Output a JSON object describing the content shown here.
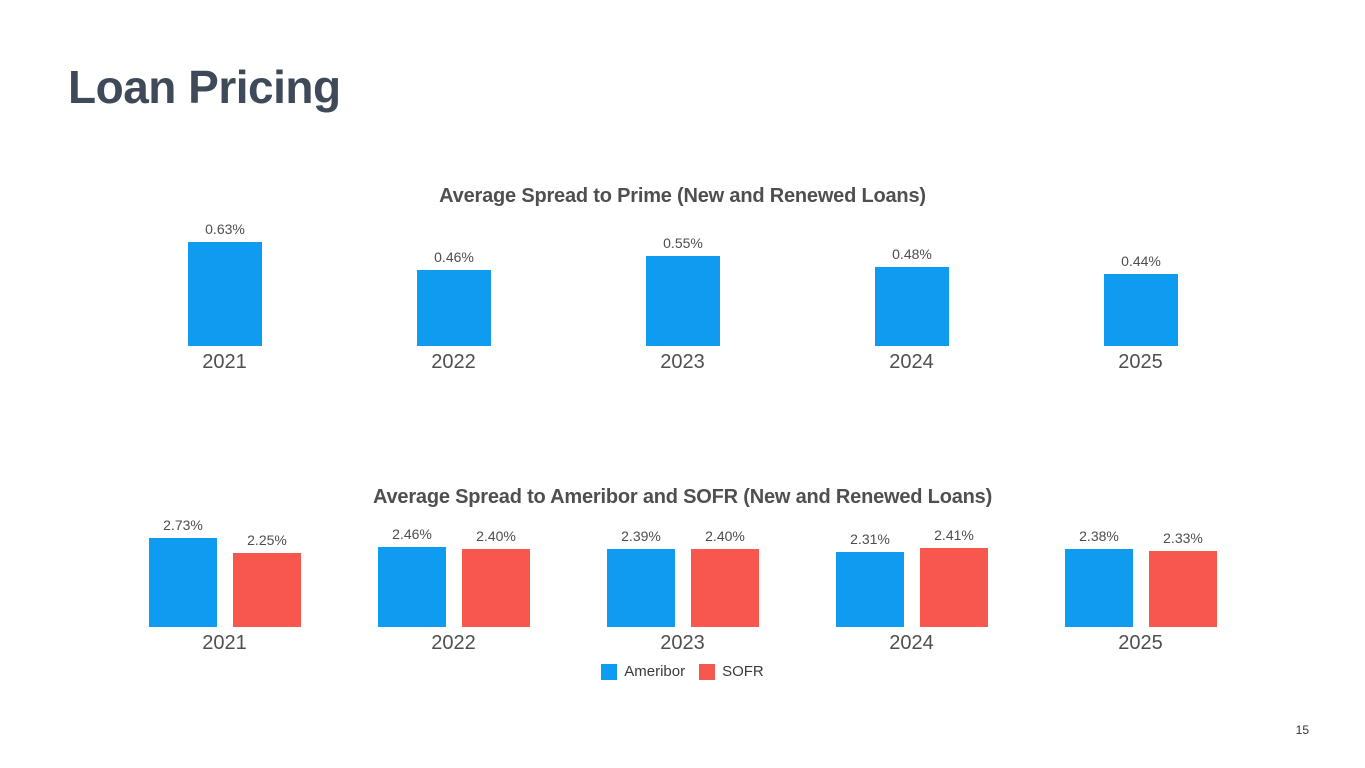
{
  "slide": {
    "title": "Loan Pricing",
    "page_number": "15"
  },
  "colors": {
    "ameribor_blue": "#0F9BF0",
    "sofr_red": "#F8574D",
    "title_dark_slate": "#3E4A59",
    "chart_text_gray": "#4F4F4F"
  },
  "chart_data": [
    {
      "type": "bar",
      "title": "Average Spread to Prime (New and Renewed Loans)",
      "categories": [
        "2021",
        "2022",
        "2023",
        "2024",
        "2025"
      ],
      "series": [
        {
          "name": "Spread to Prime",
          "color": "#0F9BF0",
          "values": [
            0.63,
            0.46,
            0.55,
            0.48,
            0.44
          ]
        }
      ],
      "value_suffix": "%",
      "data_labels": [
        "0.63%",
        "0.46%",
        "0.55%",
        "0.48%",
        "0.44%"
      ],
      "ylim": [
        0,
        0.7
      ],
      "grid": false,
      "legend_position": "none"
    },
    {
      "type": "bar",
      "title": "Average Spread to Ameribor and SOFR (New and Renewed Loans)",
      "categories": [
        "2021",
        "2022",
        "2023",
        "2024",
        "2025"
      ],
      "series": [
        {
          "name": "Ameribor",
          "color": "#0F9BF0",
          "values": [
            2.73,
            2.46,
            2.39,
            2.31,
            2.38
          ]
        },
        {
          "name": "SOFR",
          "color": "#F8574D",
          "values": [
            2.25,
            2.4,
            2.4,
            2.41,
            2.33
          ]
        }
      ],
      "value_suffix": "%",
      "ylim": [
        0,
        3.0
      ],
      "grid": false,
      "legend_position": "bottom"
    }
  ]
}
